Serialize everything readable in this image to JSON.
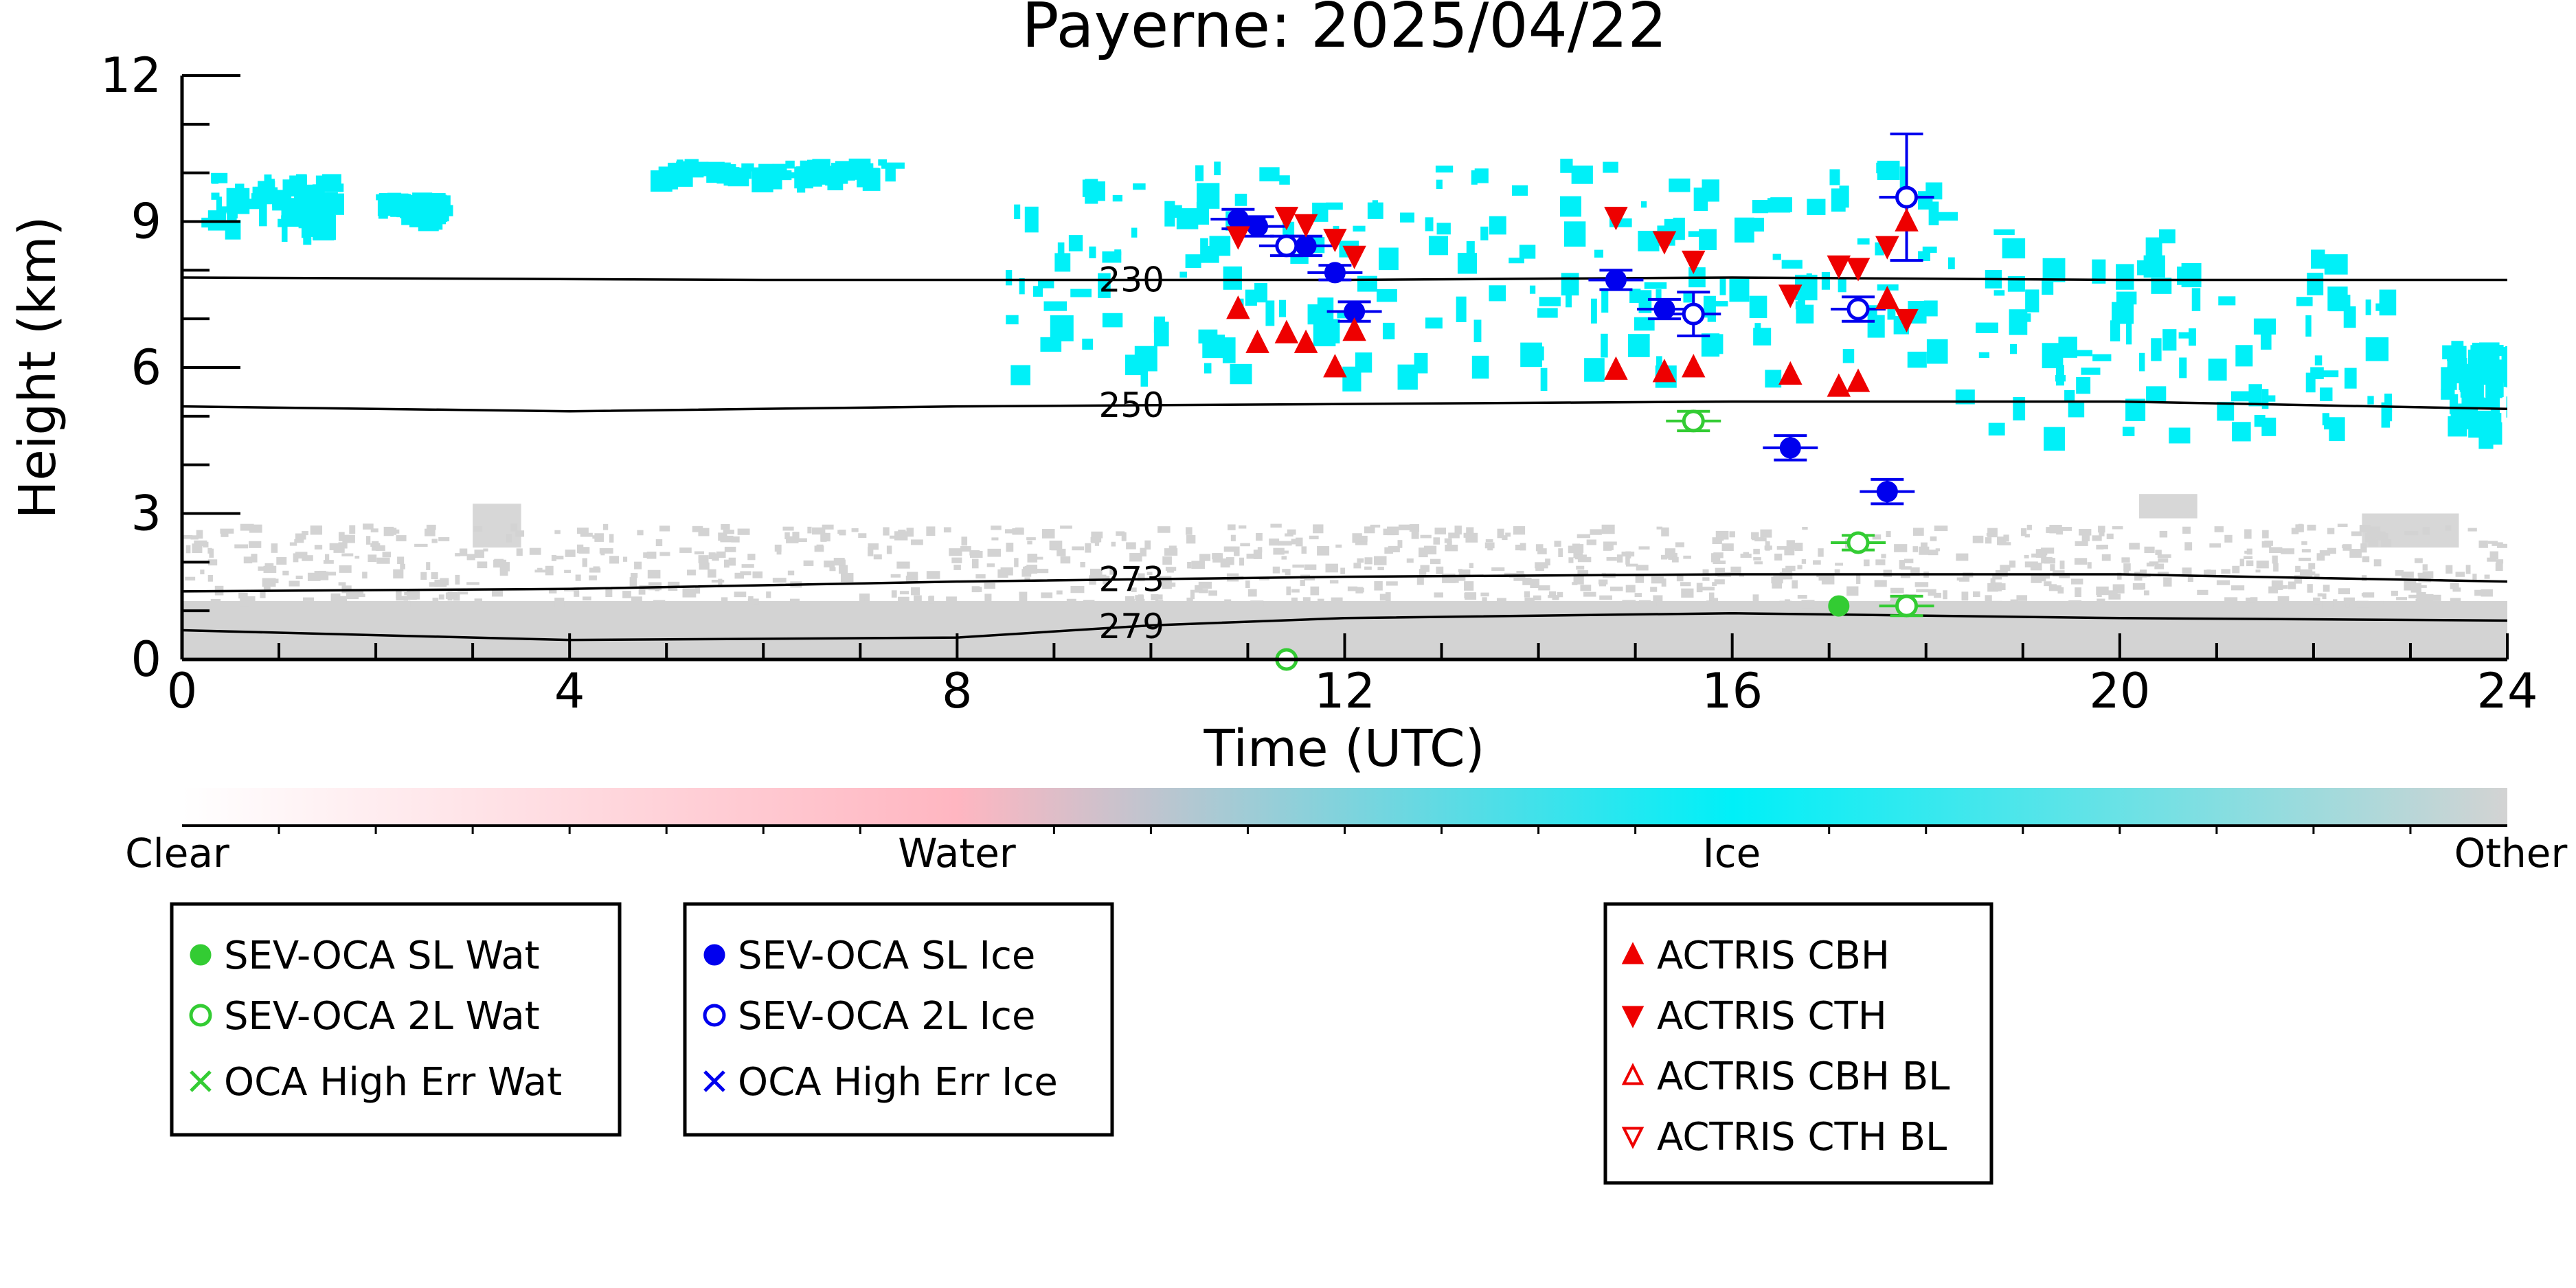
{
  "title": "Payerne: 2025/04/22",
  "colorbar": {
    "labels": [
      "Clear",
      "Water",
      "Ice",
      "Other"
    ],
    "stops": [
      "#ffffff",
      "#ffb6c1",
      "#00f0f8",
      "#d3d3d3"
    ]
  },
  "colors": {
    "water": "#33cc33",
    "ice": "#0000ee",
    "actris": "#ee0000",
    "ice_cloud": "#00f0f8",
    "other": "#d3d3d3",
    "water_cloud": "#ffb6c1"
  },
  "legends": {
    "water": [
      {
        "label": "SEV-OCA SL Wat",
        "marker": "filled-circle"
      },
      {
        "label": "SEV-OCA 2L Wat",
        "marker": "open-circle"
      },
      {
        "label": "OCA High Err Wat",
        "marker": "cross"
      }
    ],
    "ice": [
      {
        "label": "SEV-OCA SL Ice",
        "marker": "filled-circle"
      },
      {
        "label": "SEV-OCA 2L Ice",
        "marker": "open-circle"
      },
      {
        "label": "OCA High Err Ice",
        "marker": "cross"
      }
    ],
    "actris": [
      {
        "label": "ACTRIS CBH",
        "marker": "triangle-up-filled"
      },
      {
        "label": "ACTRIS CTH",
        "marker": "triangle-down-filled"
      },
      {
        "label": "ACTRIS CBH BL",
        "marker": "triangle-up-open"
      },
      {
        "label": "ACTRIS CTH BL",
        "marker": "triangle-down-open"
      }
    ]
  },
  "chart_data": {
    "type": "scatter",
    "title": "Payerne: 2025/04/22",
    "xlabel": "Time (UTC)",
    "ylabel": "Height (km)",
    "xlim": [
      0,
      24
    ],
    "ylim": [
      0,
      12
    ],
    "xticks": [
      0,
      4,
      8,
      12,
      16,
      20,
      24
    ],
    "yticks": [
      0,
      3,
      6,
      9,
      12
    ],
    "isotherms": [
      {
        "label": "230",
        "x": [
          0,
          6,
          12,
          16,
          20,
          24
        ],
        "y": [
          7.85,
          7.8,
          7.8,
          7.85,
          7.8,
          7.8
        ]
      },
      {
        "label": "250",
        "x": [
          0,
          4,
          8,
          12,
          16,
          20,
          24
        ],
        "y": [
          5.2,
          5.1,
          5.2,
          5.25,
          5.3,
          5.3,
          5.15
        ]
      },
      {
        "label": "273",
        "x": [
          0,
          4,
          8,
          12,
          16,
          18,
          20,
          24
        ],
        "y": [
          1.4,
          1.45,
          1.6,
          1.7,
          1.75,
          1.75,
          1.75,
          1.6
        ]
      },
      {
        "label": "279",
        "x": [
          0,
          4,
          8,
          10,
          12,
          16,
          18,
          20,
          24
        ],
        "y": [
          0.6,
          0.4,
          0.45,
          0.7,
          0.85,
          0.95,
          0.9,
          0.85,
          0.8
        ]
      }
    ],
    "series": [
      {
        "name": "SEV-OCA SL Wat",
        "points": [
          [
            17.1,
            1.1
          ]
        ]
      },
      {
        "name": "SEV-OCA 2L Wat",
        "points": [
          [
            15.6,
            4.9
          ],
          [
            17.3,
            2.4
          ],
          [
            17.8,
            1.1
          ],
          [
            11.4,
            0.0
          ]
        ],
        "err": [
          0.2,
          0.15,
          0.2,
          0.0
        ]
      },
      {
        "name": "SEV-OCA SL Ice",
        "points": [
          [
            10.9,
            9.05
          ],
          [
            11.1,
            8.9
          ],
          [
            11.6,
            8.5
          ],
          [
            11.9,
            7.95
          ],
          [
            12.1,
            7.15
          ],
          [
            14.8,
            7.8
          ],
          [
            15.3,
            7.2
          ],
          [
            16.6,
            4.35
          ],
          [
            17.6,
            3.45
          ]
        ],
        "err": [
          0.2,
          0.2,
          0.2,
          0.15,
          0.2,
          0.2,
          0.2,
          0.25,
          0.25
        ]
      },
      {
        "name": "SEV-OCA 2L Ice",
        "points": [
          [
            11.4,
            8.5
          ],
          [
            15.6,
            7.1
          ],
          [
            17.3,
            7.2
          ],
          [
            17.8,
            9.5
          ]
        ],
        "err": [
          0.2,
          0.45,
          0.25,
          1.3
        ]
      },
      {
        "name": "ACTRIS CBH",
        "points": [
          [
            10.9,
            7.2
          ],
          [
            11.1,
            6.5
          ],
          [
            11.4,
            6.7
          ],
          [
            11.6,
            6.5
          ],
          [
            11.9,
            6.0
          ],
          [
            12.1,
            6.75
          ],
          [
            14.8,
            5.95
          ],
          [
            15.3,
            5.9
          ],
          [
            15.6,
            6.0
          ],
          [
            16.6,
            5.85
          ],
          [
            17.1,
            5.6
          ],
          [
            17.3,
            5.7
          ],
          [
            17.6,
            7.4
          ],
          [
            17.8,
            9.0
          ]
        ]
      },
      {
        "name": "ACTRIS CTH",
        "points": [
          [
            10.9,
            8.7
          ],
          [
            11.4,
            9.1
          ],
          [
            11.6,
            8.95
          ],
          [
            11.9,
            8.65
          ],
          [
            12.1,
            8.3
          ],
          [
            14.8,
            9.1
          ],
          [
            15.3,
            8.6
          ],
          [
            15.6,
            8.2
          ],
          [
            16.6,
            7.5
          ],
          [
            17.1,
            8.1
          ],
          [
            17.3,
            8.05
          ],
          [
            17.6,
            8.5
          ],
          [
            17.8,
            7.0
          ]
        ]
      }
    ],
    "cloud_regions": [
      {
        "class": "ice",
        "x": [
          0.2,
          1.5
        ],
        "y": [
          9.0,
          10.0
        ]
      },
      {
        "class": "ice",
        "x": [
          2.0,
          2.6
        ],
        "y": [
          9.3,
          9.6
        ]
      },
      {
        "class": "ice",
        "x": [
          4.8,
          7.3
        ],
        "y": [
          10.0,
          10.3
        ]
      },
      {
        "class": "ice",
        "x": [
          8.5,
          18.2
        ],
        "y": [
          5.9,
          10.3
        ]
      },
      {
        "class": "ice",
        "x": [
          18.2,
          22.8
        ],
        "y": [
          4.6,
          9.0
        ]
      },
      {
        "class": "ice",
        "x": [
          23.3,
          24.0
        ],
        "y": [
          4.8,
          6.6
        ]
      },
      {
        "class": "other",
        "x": [
          0,
          24
        ],
        "y": [
          0,
          2.8
        ]
      },
      {
        "class": "other",
        "x": [
          3.0,
          3.5
        ],
        "y": [
          2.3,
          3.2
        ]
      },
      {
        "class": "other",
        "x": [
          20.2,
          20.8
        ],
        "y": [
          2.9,
          3.4
        ]
      },
      {
        "class": "other",
        "x": [
          22.5,
          23.5
        ],
        "y": [
          2.3,
          3.0
        ]
      }
    ]
  }
}
